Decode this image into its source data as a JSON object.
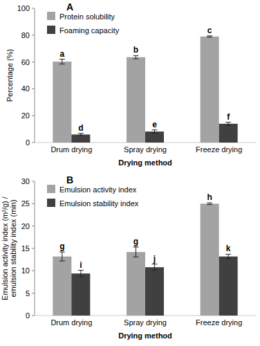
{
  "chart_data": [
    {
      "type": "bar",
      "title": "A",
      "x_label": "Drying method",
      "y_label": "Percentage (%)",
      "categories": [
        "Drum drying",
        "Spray drying",
        "Freeze drying"
      ],
      "series": [
        {
          "name": "Protein solubility",
          "color": "#a3a3a3",
          "values": [
            60.3,
            63.6,
            79.0
          ],
          "errors": [
            1.8,
            1.2,
            0.5
          ],
          "annotations": [
            "a",
            "b",
            "c"
          ]
        },
        {
          "name": "Foaming capacity",
          "color": "#404040",
          "values": [
            6.0,
            8.2,
            14.0
          ],
          "errors": [
            0.9,
            1.2,
            1.1
          ],
          "annotations": [
            "d",
            "e",
            "f"
          ]
        }
      ],
      "ylim": [
        0,
        100
      ],
      "yticks": [
        0,
        20,
        40,
        60,
        80,
        100
      ],
      "grid": false,
      "legend": "upper left"
    },
    {
      "type": "bar",
      "title": "B",
      "x_label": "Drying method",
      "y_label": "Emulsion activity index (m²/g) / emulsion stability index (min)",
      "categories": [
        "Drum drying",
        "Spray drying",
        "Freeze drying"
      ],
      "series": [
        {
          "name": "Emulsion activity index",
          "color": "#a3a3a3",
          "values": [
            13.2,
            14.2,
            25.0
          ],
          "errors": [
            1.0,
            1.1,
            0.2
          ],
          "annotations": [
            "g",
            "g",
            "h"
          ]
        },
        {
          "name": "Emulsion stability index",
          "color": "#404040",
          "values": [
            9.4,
            10.8,
            13.2
          ],
          "errors": [
            0.7,
            0.7,
            0.5
          ],
          "annotations": [
            "i",
            "j",
            "k"
          ]
        }
      ],
      "ylim": [
        0,
        30
      ],
      "yticks": [
        0,
        5,
        10,
        15,
        20,
        25,
        30
      ],
      "grid": false,
      "legend": "upper left"
    }
  ]
}
